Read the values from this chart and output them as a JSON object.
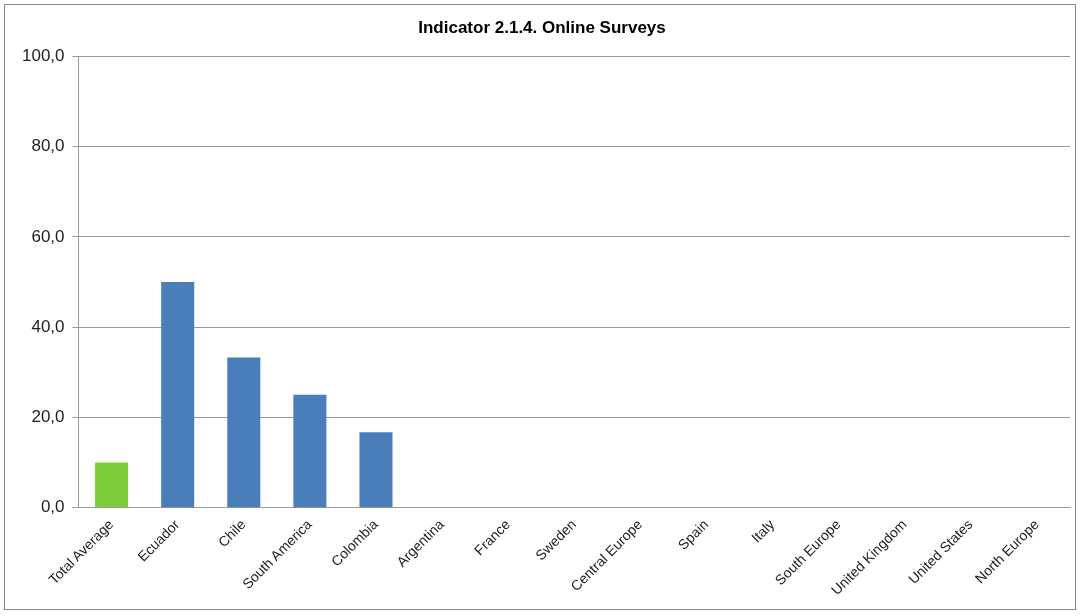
{
  "chart_data": {
    "type": "bar",
    "title": "Indicator 2.1.4. Online Surveys",
    "categories": [
      "Total Average",
      "Ecuador",
      "Chile",
      "South America",
      "Colombia",
      "Argentina",
      "France",
      "Sweden",
      "Central Europe",
      "Spain",
      "Italy",
      "South Europe",
      "United Kingdom",
      "United States",
      "North Europe"
    ],
    "values": [
      10,
      50,
      33.3,
      25,
      16.7,
      0,
      0,
      0,
      0,
      0,
      0,
      0,
      0,
      0,
      0
    ],
    "colors": [
      "#7ccc3c",
      "#4a7ebb",
      "#4a7ebb",
      "#4a7ebb",
      "#4a7ebb",
      "#4a7ebb",
      "#4a7ebb",
      "#4a7ebb",
      "#4a7ebb",
      "#4a7ebb",
      "#4a7ebb",
      "#4a7ebb",
      "#4a7ebb",
      "#4a7ebb",
      "#4a7ebb"
    ],
    "ylim": [
      0,
      100
    ],
    "yticks": [
      {
        "value": 0,
        "label": "0,0"
      },
      {
        "value": 20,
        "label": "20,0"
      },
      {
        "value": 40,
        "label": "40,0"
      },
      {
        "value": 60,
        "label": "60,0"
      },
      {
        "value": 80,
        "label": "80,0"
      },
      {
        "value": 100,
        "label": "100,0"
      }
    ],
    "grid": "y",
    "legend": false
  }
}
